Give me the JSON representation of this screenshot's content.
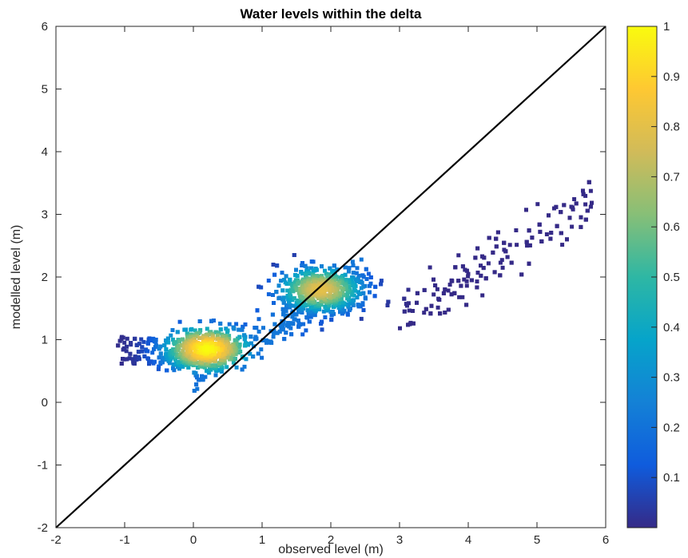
{
  "chart_data": {
    "type": "scatter",
    "subtype": "density-colored scatter (2D histogram)",
    "title": "Water levels within the delta",
    "xlabel": "observed level (m)",
    "ylabel": "modelled level (m)",
    "xlim": [
      -2,
      6
    ],
    "ylim": [
      -2,
      6
    ],
    "xticks": [
      -2,
      -1,
      0,
      1,
      2,
      3,
      4,
      5,
      6
    ],
    "yticks": [
      -2,
      -1,
      0,
      1,
      2,
      3,
      4,
      5,
      6
    ],
    "grid": false,
    "reference_line": {
      "from": [
        -2,
        -2
      ],
      "to": [
        6,
        6
      ],
      "color": "#000000"
    },
    "density_peaks": [
      {
        "x": 0.2,
        "y": 0.85,
        "density": 1.0
      },
      {
        "x": 1.85,
        "y": 1.8,
        "density": 0.8
      }
    ],
    "colorbar": {
      "colormap": "parula",
      "range": [
        0,
        1
      ],
      "ticks": [
        0.1,
        0.2,
        0.3,
        0.4,
        0.5,
        0.6,
        0.7,
        0.8,
        0.9,
        1
      ],
      "tick_labels": [
        "0.1",
        "0.2",
        "0.3",
        "0.4",
        "0.5",
        "0.6",
        "0.7",
        "0.8",
        "0.9",
        "1"
      ],
      "colors": [
        "#352a87",
        "#0f5cdd",
        "#1481d6",
        "#06a4ca",
        "#2eb7a4",
        "#87bf77",
        "#d1bb59",
        "#fec832",
        "#f9fb0e"
      ]
    }
  }
}
